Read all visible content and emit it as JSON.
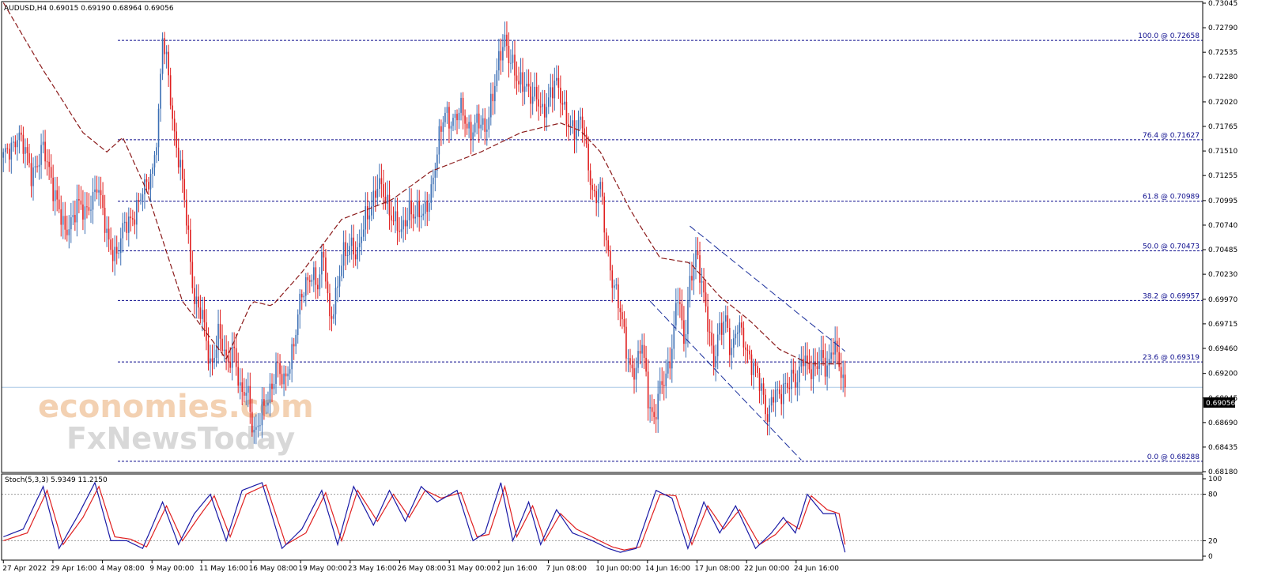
{
  "chart_data": {
    "type": "candlestick",
    "symbol_header": "AUDUSD,H4  0.69015 0.69190 0.68964 0.69056",
    "current_price": "0.69056",
    "y_ticks": [
      "0.73045",
      "0.72790",
      "0.72535",
      "0.72280",
      "0.72020",
      "0.71765",
      "0.71510",
      "0.71255",
      "0.70995",
      "0.70740",
      "0.70485",
      "0.70230",
      "0.69970",
      "0.69715",
      "0.69460",
      "0.69200",
      "0.68945",
      "0.68690",
      "0.68435",
      "0.68180"
    ],
    "ylim": [
      0.6818,
      0.73045
    ],
    "x_ticks": [
      "27 Apr 2022",
      "29 Apr 16:00",
      "4 May 08:00",
      "9 May 00:00",
      "11 May 16:00",
      "16 May 08:00",
      "19 May 00:00",
      "23 May 16:00",
      "26 May 08:00",
      "31 May 00:00",
      "2 Jun 16:00",
      "7 Jun 08:00",
      "10 Jun 00:00",
      "14 Jun 16:00",
      "17 Jun 08:00",
      "22 Jun 00:00",
      "24 Jun 16:00"
    ],
    "fibonacci": [
      {
        "label": "100.0 @ 0.72658",
        "level": 0.72658
      },
      {
        "label": "76.4 @ 0.71627",
        "level": 0.71627
      },
      {
        "label": "61.8 @ 0.70989",
        "level": 0.70989
      },
      {
        "label": "50.0 @ 0.70473",
        "level": 0.70473
      },
      {
        "label": "38.2 @ 0.69957",
        "level": 0.69957
      },
      {
        "label": "23.6 @ 0.69319",
        "level": 0.69319
      },
      {
        "label": "0.0 @ 0.68288",
        "level": 0.68288
      }
    ],
    "series": [
      {
        "name": "price",
        "anchors": [
          [
            0,
            0.714
          ],
          [
            7,
            0.717
          ],
          [
            14,
            0.713
          ],
          [
            20,
            0.715
          ],
          [
            26,
            0.711
          ],
          [
            31,
            0.706
          ],
          [
            37,
            0.71
          ],
          [
            41,
            0.708
          ],
          [
            47,
            0.712
          ],
          [
            52,
            0.706
          ],
          [
            57,
            0.7045
          ],
          [
            61,
            0.707
          ],
          [
            66,
            0.709
          ],
          [
            71,
            0.7108
          ],
          [
            75,
            0.7135
          ],
          [
            78,
            0.7185
          ],
          [
            80,
            0.7265
          ],
          [
            83,
            0.723
          ],
          [
            86,
            0.717
          ],
          [
            89,
            0.713
          ],
          [
            92,
            0.708
          ],
          [
            96,
            0.7
          ],
          [
            100,
            0.6975
          ],
          [
            104,
            0.693
          ],
          [
            108,
            0.696
          ],
          [
            112,
            0.693
          ],
          [
            116,
            0.695
          ],
          [
            119,
            0.6895
          ],
          [
            123,
            0.69
          ],
          [
            126,
            0.686
          ],
          [
            129,
            0.687
          ],
          [
            133,
            0.6895
          ],
          [
            137,
            0.693
          ],
          [
            141,
            0.6905
          ],
          [
            145,
            0.6945
          ],
          [
            149,
            0.699
          ],
          [
            152,
            0.701
          ],
          [
            155,
            0.703
          ],
          [
            158,
            0.701
          ],
          [
            161,
            0.704
          ],
          [
            164,
            0.698
          ],
          [
            167,
            0.7
          ],
          [
            171,
            0.704
          ],
          [
            175,
            0.706
          ],
          [
            178,
            0.704
          ],
          [
            182,
            0.708
          ],
          [
            185,
            0.71
          ],
          [
            188,
            0.7115
          ],
          [
            192,
            0.71
          ],
          [
            196,
            0.7085
          ],
          [
            200,
            0.706
          ],
          [
            204,
            0.7095
          ],
          [
            208,
            0.7085
          ],
          [
            211,
            0.708
          ],
          [
            215,
            0.7115
          ],
          [
            219,
            0.716
          ],
          [
            222,
            0.719
          ],
          [
            226,
            0.7185
          ],
          [
            230,
            0.719
          ],
          [
            234,
            0.7175
          ],
          [
            238,
            0.718
          ],
          [
            242,
            0.717
          ],
          [
            245,
            0.7205
          ],
          [
            249,
            0.724
          ],
          [
            252,
            0.7265
          ],
          [
            256,
            0.7245
          ],
          [
            259,
            0.7215
          ],
          [
            263,
            0.722
          ],
          [
            267,
            0.721
          ],
          [
            271,
            0.7185
          ],
          [
            274,
            0.721
          ],
          [
            277,
            0.7225
          ],
          [
            281,
            0.7195
          ],
          [
            284,
            0.7185
          ],
          [
            288,
            0.717
          ],
          [
            291,
            0.718
          ],
          [
            294,
            0.714
          ],
          [
            297,
            0.71
          ],
          [
            300,
            0.711
          ],
          [
            303,
            0.706
          ],
          [
            306,
            0.702
          ],
          [
            309,
            0.699
          ],
          [
            312,
            0.696
          ],
          [
            315,
            0.693
          ],
          [
            318,
            0.692
          ],
          [
            321,
            0.695
          ],
          [
            324,
            0.69
          ],
          [
            327,
            0.687
          ],
          [
            330,
            0.69
          ],
          [
            333,
            0.692
          ],
          [
            336,
            0.695
          ],
          [
            339,
            0.7
          ],
          [
            342,
            0.695
          ],
          [
            345,
            0.702
          ],
          [
            348,
            0.704
          ],
          [
            351,
            0.701
          ],
          [
            354,
            0.698
          ],
          [
            357,
            0.693
          ],
          [
            360,
            0.696
          ],
          [
            363,
            0.698
          ],
          [
            366,
            0.6945
          ],
          [
            369,
            0.6965
          ],
          [
            372,
            0.6955
          ],
          [
            375,
            0.694
          ],
          [
            378,
            0.692
          ],
          [
            381,
            0.69
          ],
          [
            384,
            0.688
          ],
          [
            387,
            0.69
          ],
          [
            390,
            0.689
          ],
          [
            393,
            0.691
          ],
          [
            396,
            0.692
          ],
          [
            399,
            0.6905
          ],
          [
            402,
            0.694
          ],
          [
            405,
            0.693
          ],
          [
            408,
            0.692
          ],
          [
            411,
            0.6935
          ],
          [
            414,
            0.693
          ],
          [
            417,
            0.695
          ],
          [
            420,
            0.6925
          ],
          [
            423,
            0.6905
          ]
        ]
      },
      {
        "name": "moving_average",
        "anchors": [
          [
            0,
            0.7305
          ],
          [
            20,
            0.7235
          ],
          [
            40,
            0.717
          ],
          [
            52,
            0.715
          ],
          [
            60,
            0.7165
          ],
          [
            72,
            0.711
          ],
          [
            90,
            0.6995
          ],
          [
            112,
            0.6935
          ],
          [
            125,
            0.6995
          ],
          [
            135,
            0.699
          ],
          [
            150,
            0.7025
          ],
          [
            170,
            0.708
          ],
          [
            195,
            0.71
          ],
          [
            215,
            0.713
          ],
          [
            240,
            0.715
          ],
          [
            260,
            0.717
          ],
          [
            280,
            0.718
          ],
          [
            290,
            0.7172
          ],
          [
            300,
            0.715
          ],
          [
            315,
            0.709
          ],
          [
            330,
            0.704
          ],
          [
            345,
            0.7035
          ],
          [
            360,
            0.7
          ],
          [
            375,
            0.6975
          ],
          [
            390,
            0.6945
          ],
          [
            405,
            0.693
          ],
          [
            423,
            0.693
          ]
        ]
      },
      {
        "name": "stoch_main",
        "anchors": [
          [
            0,
            25
          ],
          [
            10,
            35
          ],
          [
            20,
            90
          ],
          [
            28,
            10
          ],
          [
            38,
            55
          ],
          [
            46,
            95
          ],
          [
            54,
            20
          ],
          [
            62,
            20
          ],
          [
            70,
            10
          ],
          [
            80,
            70
          ],
          [
            88,
            15
          ],
          [
            96,
            55
          ],
          [
            104,
            80
          ],
          [
            112,
            20
          ],
          [
            120,
            85
          ],
          [
            130,
            95
          ],
          [
            140,
            10
          ],
          [
            150,
            35
          ],
          [
            160,
            85
          ],
          [
            168,
            15
          ],
          [
            176,
            90
          ],
          [
            186,
            40
          ],
          [
            194,
            85
          ],
          [
            202,
            45
          ],
          [
            210,
            90
          ],
          [
            218,
            70
          ],
          [
            228,
            85
          ],
          [
            236,
            20
          ],
          [
            242,
            30
          ],
          [
            250,
            95
          ],
          [
            256,
            20
          ],
          [
            264,
            70
          ],
          [
            270,
            15
          ],
          [
            278,
            60
          ],
          [
            286,
            30
          ],
          [
            296,
            20
          ],
          [
            304,
            10
          ],
          [
            310,
            5
          ],
          [
            318,
            10
          ],
          [
            328,
            85
          ],
          [
            336,
            75
          ],
          [
            344,
            10
          ],
          [
            352,
            70
          ],
          [
            360,
            30
          ],
          [
            368,
            65
          ],
          [
            378,
            10
          ],
          [
            386,
            30
          ],
          [
            392,
            50
          ],
          [
            398,
            30
          ],
          [
            404,
            80
          ],
          [
            412,
            55
          ],
          [
            418,
            55
          ],
          [
            423,
            5
          ]
        ]
      },
      {
        "name": "stoch_signal",
        "anchors": [
          [
            0,
            20
          ],
          [
            12,
            30
          ],
          [
            22,
            85
          ],
          [
            30,
            15
          ],
          [
            40,
            50
          ],
          [
            48,
            90
          ],
          [
            56,
            25
          ],
          [
            64,
            22
          ],
          [
            72,
            12
          ],
          [
            82,
            65
          ],
          [
            90,
            20
          ],
          [
            98,
            50
          ],
          [
            106,
            78
          ],
          [
            114,
            25
          ],
          [
            122,
            80
          ],
          [
            132,
            92
          ],
          [
            142,
            15
          ],
          [
            152,
            30
          ],
          [
            162,
            82
          ],
          [
            170,
            20
          ],
          [
            178,
            85
          ],
          [
            188,
            45
          ],
          [
            196,
            80
          ],
          [
            204,
            50
          ],
          [
            212,
            85
          ],
          [
            220,
            75
          ],
          [
            230,
            82
          ],
          [
            238,
            25
          ],
          [
            244,
            28
          ],
          [
            252,
            90
          ],
          [
            258,
            25
          ],
          [
            266,
            65
          ],
          [
            272,
            20
          ],
          [
            280,
            55
          ],
          [
            288,
            35
          ],
          [
            298,
            22
          ],
          [
            306,
            12
          ],
          [
            312,
            8
          ],
          [
            320,
            12
          ],
          [
            330,
            80
          ],
          [
            338,
            78
          ],
          [
            346,
            15
          ],
          [
            354,
            65
          ],
          [
            362,
            35
          ],
          [
            370,
            60
          ],
          [
            380,
            15
          ],
          [
            388,
            28
          ],
          [
            394,
            45
          ],
          [
            400,
            35
          ],
          [
            406,
            78
          ],
          [
            414,
            60
          ],
          [
            420,
            55
          ],
          [
            423,
            15
          ]
        ]
      }
    ],
    "stochastic": {
      "label": "Stoch(5,3,3) 5.9349 11.2150",
      "ylim": [
        0,
        100
      ],
      "y_ticks": [
        "100",
        "80",
        "20",
        "0"
      ],
      "levels": [
        80,
        20
      ]
    },
    "colors": {
      "bull": "#3c6fb4",
      "bear": "#e02020",
      "ma": "#8b1a1a",
      "fib": "#0a0a8c",
      "channel": "#1a2f9c",
      "stoch_main": "#1a1aa6",
      "stoch_signal": "#e02020",
      "current_line": "#aac8e6",
      "watermark_orange": "#f2c9a5",
      "watermark_gray": "#d2d2d2"
    },
    "watermark": {
      "line1": "economies.com",
      "line2": "FxNewsToday"
    }
  }
}
